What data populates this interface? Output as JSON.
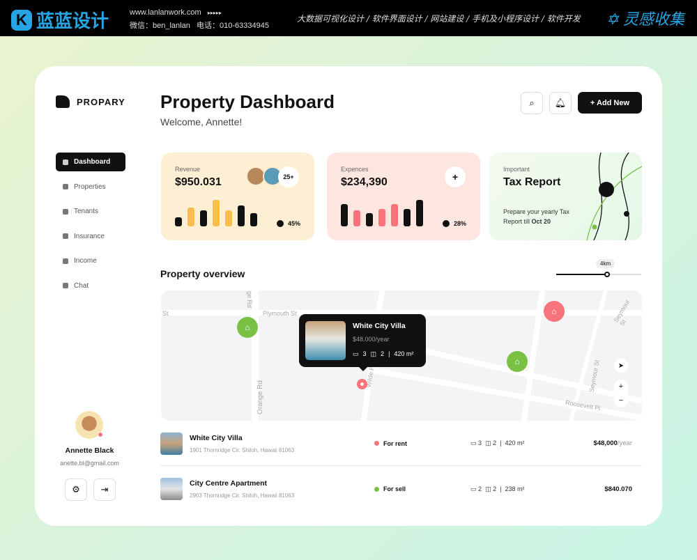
{
  "banner": {
    "logo_text": "蓝蓝设计",
    "url": "www.lanlanwork.com",
    "arrows": "▸▸▸▸▸",
    "wechat": "微信：ben_lanlan",
    "phone": "电话：010-63334945",
    "services": "大数据可视化设计 / 软件界面设计 / 网站建设 / 手机及小程序设计 / 软件开发",
    "brand2": "灵感收集"
  },
  "app": {
    "name": "PROPARY"
  },
  "sidebar": {
    "items": [
      {
        "label": "Dashboard",
        "active": true
      },
      {
        "label": "Properties"
      },
      {
        "label": "Tenants"
      },
      {
        "label": "Insurance"
      },
      {
        "label": "Income"
      },
      {
        "label": "Chat"
      }
    ]
  },
  "user": {
    "name": "Annette Black",
    "email": "anette.bl@gmail.com"
  },
  "header": {
    "title": "Property Dashboard",
    "welcome": "Welcome, Annette!",
    "add_new": "+ Add New"
  },
  "stats": {
    "revenue": {
      "label": "Revenue",
      "value": "$950.031",
      "badge": "25+",
      "percent": "45%",
      "bars": [
        0.35,
        0.7,
        0.6,
        1.0,
        0.6,
        0.8,
        0.5
      ],
      "colors": [
        "#111",
        "#fbbd4c",
        "#111",
        "#fbbd4c",
        "#fbbd4c",
        "#111",
        "#111"
      ]
    },
    "expenses": {
      "label": "Expences",
      "value": "$234,390",
      "add": "+",
      "percent": "28%",
      "bars": [
        0.85,
        0.6,
        0.5,
        0.65,
        0.85,
        0.65,
        1.0
      ],
      "colors": [
        "#111",
        "#f9737a",
        "#111",
        "#f9737a",
        "#f9737a",
        "#111",
        "#111"
      ]
    },
    "tax": {
      "label": "Important",
      "title": "Tax Report",
      "text": "Prepare your yearly Tax Report till",
      "date": "Oct 20"
    }
  },
  "overview": {
    "title": "Property overview",
    "distance": "4km",
    "distance_fraction": 0.6
  },
  "map": {
    "streets": [
      "St",
      "Plymouth St",
      "ge Rd",
      "Orange Rd",
      "Wilde Pl",
      "Seymour St",
      "Seymour St",
      "Roosevelt Pl"
    ],
    "popup": {
      "name": "White City Villa",
      "price": "$48.000/year",
      "beds": "3",
      "baths": "2",
      "area": "420 m²"
    },
    "zoom_in": "+",
    "zoom_out": "−"
  },
  "properties": [
    {
      "name": "White City Villa",
      "address": "1901 Thornridge Cir. Shiloh, Hawaii 81063",
      "status": "For rent",
      "status_color": "#f9737a",
      "beds": "3",
      "baths": "2",
      "area": "420 m²",
      "price": "$48,000",
      "price_unit": "/year"
    },
    {
      "name": "City Centre Apartment",
      "address": "2903 Thornridge Cir. Shiloh, Hawaii 81063",
      "status": "For sell",
      "status_color": "#7ac143",
      "beds": "2",
      "baths": "2",
      "area": "238 m²",
      "price": "$840.070",
      "price_unit": ""
    }
  ]
}
